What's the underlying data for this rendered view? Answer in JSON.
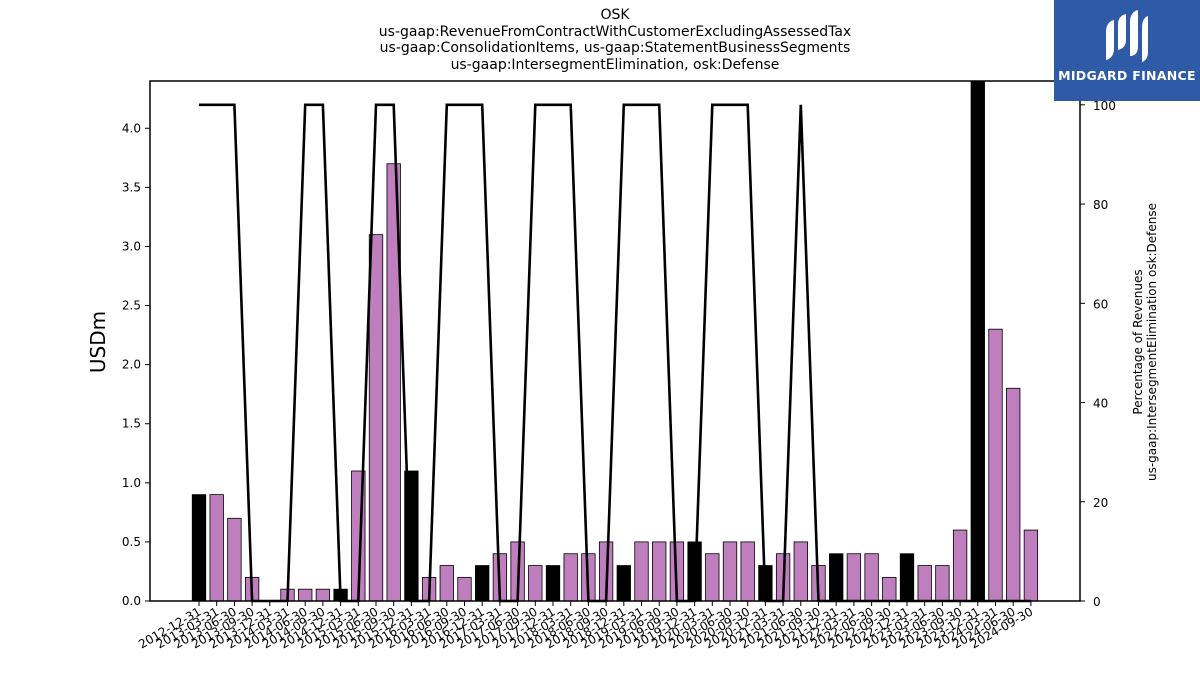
{
  "colors": {
    "bar_default": "#bf7fbf",
    "bar_highlight": "#000000",
    "line": "#000000",
    "logo_bg": "#2f5aa8"
  },
  "logo": {
    "text": "MIDGARD FINANCE",
    "icon": "midgard-m-icon"
  },
  "chart_data": {
    "type": "bar",
    "title_lines": [
      "OSK",
      "us-gaap:RevenueFromContractWithCustomerExcludingAssessedTax",
      "us-gaap:ConsolidationItems, us-gaap:StatementBusinessSegments",
      "us-gaap:IntersegmentElimination, osk:Defense"
    ],
    "ylabel": "USDm",
    "y2label_lines": [
      "Percentage of Revenues",
      "us-gaap:IntersegmentElimination osk:Defense"
    ],
    "ylim": [
      0,
      4.4
    ],
    "y2lim": [
      0,
      104.8
    ],
    "yticks": [
      "0.0",
      "0.5",
      "1.0",
      "1.5",
      "2.0",
      "2.5",
      "3.0",
      "3.5",
      "4.0"
    ],
    "y2ticks": [
      "0",
      "20",
      "40",
      "60",
      "80",
      "100"
    ],
    "categories": [
      "2012-12-31",
      "2013-03-31",
      "2013-06-30",
      "2013-09-30",
      "2013-12-31",
      "2014-03-31",
      "2014-06-30",
      "2014-09-30",
      "2014-12-31",
      "2015-03-31",
      "2015-06-30",
      "2015-09-30",
      "2015-12-31",
      "2016-03-31",
      "2016-06-30",
      "2016-09-30",
      "2016-12-31",
      "2017-03-31",
      "2017-06-30",
      "2017-09-30",
      "2017-12-31",
      "2018-03-31",
      "2018-06-30",
      "2018-09-30",
      "2018-12-31",
      "2019-03-31",
      "2019-06-30",
      "2019-09-30",
      "2019-12-31",
      "2020-03-31",
      "2020-06-30",
      "2020-09-30",
      "2020-12-31",
      "2021-03-31",
      "2021-06-30",
      "2021-09-30",
      "2021-12-31",
      "2022-03-31",
      "2022-06-30",
      "2022-09-30",
      "2022-12-31",
      "2023-03-31",
      "2023-06-30",
      "2023-09-30",
      "2023-12-31",
      "2024-03-31",
      "2024-06-30",
      "2024-09-30"
    ],
    "values": [
      0.9,
      0.9,
      0.7,
      0.2,
      0.0,
      0.1,
      0.1,
      0.1,
      0.1,
      1.1,
      3.1,
      3.7,
      1.1,
      0.2,
      0.3,
      0.2,
      0.3,
      0.4,
      0.5,
      0.3,
      0.3,
      0.4,
      0.4,
      0.5,
      0.3,
      0.5,
      0.5,
      0.5,
      0.5,
      0.4,
      0.5,
      0.5,
      0.3,
      0.4,
      0.5,
      0.3,
      0.4,
      0.4,
      0.4,
      0.2,
      0.4,
      0.3,
      0.3,
      0.6,
      4.4,
      2.3,
      1.8,
      0.6
    ],
    "highlight": [
      true,
      false,
      false,
      false,
      false,
      false,
      false,
      false,
      true,
      false,
      false,
      false,
      true,
      false,
      false,
      false,
      true,
      false,
      false,
      false,
      true,
      false,
      false,
      false,
      true,
      false,
      false,
      false,
      true,
      false,
      false,
      false,
      true,
      false,
      false,
      false,
      true,
      false,
      false,
      false,
      true,
      false,
      false,
      false,
      true,
      false,
      false,
      false
    ],
    "line_series": {
      "axis": "right",
      "values": [
        100,
        100,
        100,
        0,
        0,
        0,
        100,
        100,
        0,
        0,
        100,
        100,
        0,
        0,
        100,
        100,
        100,
        0,
        0,
        100,
        100,
        100,
        0,
        0,
        100,
        100,
        100,
        0,
        0,
        100,
        100,
        100,
        0,
        0,
        100,
        0,
        0,
        0,
        0,
        0,
        0,
        0,
        0,
        0,
        0,
        0,
        0,
        0
      ]
    }
  }
}
